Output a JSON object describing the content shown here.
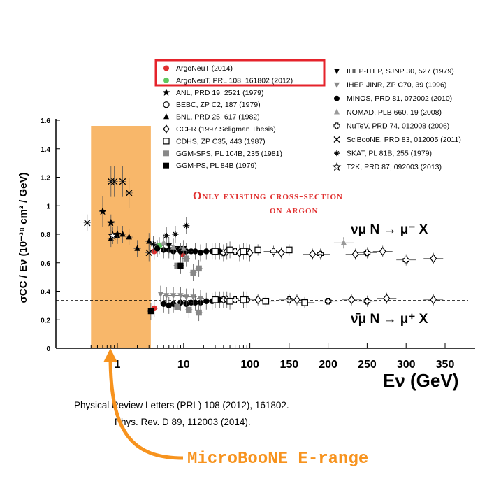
{
  "chart_data": {
    "type": "scatter",
    "title": "",
    "ylabel": "σCC / Eν (10⁻³⁸ cm² / GeV)",
    "xlabel": "Eν (GeV)",
    "ylim": [
      0,
      1.6
    ],
    "yticks": [
      "0",
      "0.2",
      "0.4",
      "0.6",
      "0.8",
      "1",
      "1.2",
      "1.4",
      "1.6"
    ],
    "xtick_labels": [
      "1",
      "10",
      "100",
      "150",
      "200",
      "250",
      "300",
      "350"
    ],
    "x_scale": "log below 100 GeV, linear above 100 GeV",
    "reference_lines": [
      {
        "y": 0.675,
        "style": "dashed",
        "label": "νμ N → μ⁻ X"
      },
      {
        "y": 0.335,
        "style": "dashed",
        "label": "ν̄μ N → μ⁺ X"
      }
    ],
    "highlight_band": {
      "x_range": [
        0.4,
        3.2
      ],
      "color": "#f8b76a",
      "label": "MicroBooNE E-range"
    },
    "annotation": "Only existing cross-section on argon",
    "legend": [
      {
        "label": "ArgoNeuT (2014)",
        "marker": "filled circle",
        "color": "#e03030",
        "boxed": true
      },
      {
        "label": "ArgoNeuT, PRL 108, 161802 (2012)",
        "marker": "filled circle",
        "color": "#5fc85f",
        "boxed": true
      },
      {
        "label": "ANL, PRD 19, 2521 (1979)",
        "marker": "filled star",
        "color": "#000000"
      },
      {
        "label": "BEBC, ZP C2, 187 (1979)",
        "marker": "open circle",
        "color": "#000000"
      },
      {
        "label": "BNL, PRD 25, 617 (1982)",
        "marker": "filled triangle",
        "color": "#000000"
      },
      {
        "label": "CCFR (1997 Seligman Thesis)",
        "marker": "open diamond",
        "color": "#000000"
      },
      {
        "label": "CDHS, ZP C35, 443 (1987)",
        "marker": "open square",
        "color": "#000000"
      },
      {
        "label": "GGM-SPS, PL 104B, 235 (1981)",
        "marker": "filled square",
        "color": "#888888"
      },
      {
        "label": "GGM-PS, PL 84B (1979)",
        "marker": "filled square",
        "color": "#000000"
      },
      {
        "label": "IHEP-ITEP, SJNP 30, 527 (1979)",
        "marker": "filled triangle down",
        "color": "#000000"
      },
      {
        "label": "IHEP-JINR, ZP C70, 39 (1996)",
        "marker": "filled triangle down",
        "color": "#888888"
      },
      {
        "label": "MINOS, PRD 81, 072002 (2010)",
        "marker": "filled circle",
        "color": "#000000"
      },
      {
        "label": "NOMAD, PLB 660, 19 (2008)",
        "marker": "filled triangle",
        "color": "#999999"
      },
      {
        "label": "NuTeV, PRD 74, 012008 (2006)",
        "marker": "open cross",
        "color": "#000000"
      },
      {
        "label": "SciBooNE, PRD 83, 012005 (2011)",
        "marker": "x",
        "color": "#000000"
      },
      {
        "label": "SKAT, PL 81B, 255 (1979)",
        "marker": "asterisk",
        "color": "#000000"
      },
      {
        "label": "T2K, PRD 87, 092003 (2013)",
        "marker": "open star",
        "color": "#000000"
      }
    ],
    "series": [
      {
        "name": "ArgoNeuT (2014)",
        "marker": "filled circle",
        "color": "#e03030",
        "points": [
          {
            "x": 3.6,
            "y": 0.68
          },
          {
            "x": 3.6,
            "y": 0.28
          },
          {
            "x": 9.6,
            "y": 0.66
          }
        ]
      },
      {
        "name": "ArgoNeuT, PRL 108, 161802 (2012)",
        "marker": "filled circle",
        "color": "#5fc85f",
        "points": [
          {
            "x": 4.3,
            "y": 0.72
          }
        ]
      },
      {
        "name": "MINOS, PRD 81, 072002 (2010)",
        "marker": "filled circle",
        "color": "#000000",
        "points": [
          {
            "x": 4,
            "y": 0.7
          },
          {
            "x": 5,
            "y": 0.69
          },
          {
            "x": 6,
            "y": 0.69
          },
          {
            "x": 7,
            "y": 0.68
          },
          {
            "x": 9,
            "y": 0.68
          },
          {
            "x": 11,
            "y": 0.68
          },
          {
            "x": 13,
            "y": 0.68
          },
          {
            "x": 15,
            "y": 0.68
          },
          {
            "x": 18,
            "y": 0.67
          },
          {
            "x": 22,
            "y": 0.68
          },
          {
            "x": 27,
            "y": 0.68
          },
          {
            "x": 35,
            "y": 0.68
          },
          {
            "x": 5,
            "y": 0.31
          },
          {
            "x": 6,
            "y": 0.3
          },
          {
            "x": 7,
            "y": 0.31
          },
          {
            "x": 9,
            "y": 0.32
          },
          {
            "x": 11,
            "y": 0.31
          },
          {
            "x": 13,
            "y": 0.32
          },
          {
            "x": 15,
            "y": 0.32
          },
          {
            "x": 18,
            "y": 0.32
          },
          {
            "x": 22,
            "y": 0.33
          },
          {
            "x": 27,
            "y": 0.33
          },
          {
            "x": 35,
            "y": 0.34
          }
        ]
      },
      {
        "name": "NuTeV, PRD 74, 012008 (2006)",
        "marker": "open cross",
        "color": "#000000",
        "points": [
          {
            "x": 40,
            "y": 0.67
          },
          {
            "x": 60,
            "y": 0.68
          },
          {
            "x": 90,
            "y": 0.68
          },
          {
            "x": 130,
            "y": 0.68
          },
          {
            "x": 190,
            "y": 0.66
          },
          {
            "x": 250,
            "y": 0.67
          },
          {
            "x": 300,
            "y": 0.62
          },
          {
            "x": 40,
            "y": 0.34
          },
          {
            "x": 60,
            "y": 0.34
          },
          {
            "x": 90,
            "y": 0.34
          },
          {
            "x": 150,
            "y": 0.34
          },
          {
            "x": 200,
            "y": 0.33
          },
          {
            "x": 250,
            "y": 0.33
          }
        ]
      },
      {
        "name": "CCFR (1997 Seligman Thesis)",
        "marker": "open diamond",
        "color": "#000000",
        "points": [
          {
            "x": 45,
            "y": 0.68
          },
          {
            "x": 70,
            "y": 0.67
          },
          {
            "x": 100,
            "y": 0.67
          },
          {
            "x": 140,
            "y": 0.67
          },
          {
            "x": 180,
            "y": 0.66
          },
          {
            "x": 235,
            "y": 0.66
          },
          {
            "x": 270,
            "y": 0.68
          },
          {
            "x": 335,
            "y": 0.63
          },
          {
            "x": 45,
            "y": 0.34
          },
          {
            "x": 80,
            "y": 0.34
          },
          {
            "x": 110,
            "y": 0.34
          },
          {
            "x": 160,
            "y": 0.34
          },
          {
            "x": 230,
            "y": 0.34
          },
          {
            "x": 275,
            "y": 0.35
          },
          {
            "x": 335,
            "y": 0.34
          }
        ]
      },
      {
        "name": "CDHS, ZP C35, 443 (1987)",
        "marker": "open square",
        "color": "#000000",
        "points": [
          {
            "x": 30,
            "y": 0.68
          },
          {
            "x": 50,
            "y": 0.69
          },
          {
            "x": 80,
            "y": 0.68
          },
          {
            "x": 110,
            "y": 0.69
          },
          {
            "x": 150,
            "y": 0.69
          },
          {
            "x": 30,
            "y": 0.34
          },
          {
            "x": 50,
            "y": 0.33
          },
          {
            "x": 80,
            "y": 0.34
          },
          {
            "x": 120,
            "y": 0.33
          },
          {
            "x": 170,
            "y": 0.32
          }
        ]
      },
      {
        "name": "GGM-SPS, PL 104B, 235 (1981)",
        "marker": "filled square",
        "color": "#888888",
        "points": [
          {
            "x": 8,
            "y": 0.58
          },
          {
            "x": 11,
            "y": 0.63
          },
          {
            "x": 14,
            "y": 0.53
          },
          {
            "x": 17,
            "y": 0.56
          },
          {
            "x": 8,
            "y": 0.29
          },
          {
            "x": 12,
            "y": 0.27
          },
          {
            "x": 17,
            "y": 0.25
          }
        ]
      },
      {
        "name": "GGM-PS, PL 84B (1979)",
        "marker": "filled square",
        "color": "#000000",
        "points": [
          {
            "x": 3.2,
            "y": 0.26
          },
          {
            "x": 9,
            "y": 0.58
          }
        ]
      },
      {
        "name": "IHEP-JINR, ZP C70, 39 (1996)",
        "marker": "filled triangle down",
        "color": "#888888",
        "points": [
          {
            "x": 4.5,
            "y": 0.38
          },
          {
            "x": 5.5,
            "y": 0.37
          },
          {
            "x": 7,
            "y": 0.37
          },
          {
            "x": 9,
            "y": 0.37
          },
          {
            "x": 11,
            "y": 0.36
          },
          {
            "x": 14,
            "y": 0.36
          },
          {
            "x": 18,
            "y": 0.35
          }
        ]
      },
      {
        "name": "IHEP-ITEP, SJNP 30, 527 (1979)",
        "marker": "filled triangle down",
        "color": "#000000",
        "points": [
          {
            "x": 6,
            "y": 0.72
          },
          {
            "x": 8,
            "y": 0.7
          },
          {
            "x": 10,
            "y": 0.7
          }
        ]
      },
      {
        "name": "NOMAD, PLB 660, 19 (2008)",
        "marker": "filled triangle",
        "color": "#999999",
        "points": [
          {
            "x": 5,
            "y": 0.74
          },
          {
            "x": 7,
            "y": 0.71
          },
          {
            "x": 10,
            "y": 0.7
          },
          {
            "x": 220,
            "y": 0.74
          }
        ]
      },
      {
        "name": "BNL, PRD 25, 617 (1982)",
        "marker": "filled triangle",
        "color": "#000000",
        "points": [
          {
            "x": 0.8,
            "y": 0.77
          },
          {
            "x": 1.0,
            "y": 0.79
          },
          {
            "x": 1.2,
            "y": 0.8
          },
          {
            "x": 1.5,
            "y": 0.78
          },
          {
            "x": 2.0,
            "y": 0.7
          },
          {
            "x": 3.0,
            "y": 0.75
          }
        ]
      },
      {
        "name": "ANL, PRD 19, 2521 (1979)",
        "marker": "filled star",
        "color": "#000000",
        "points": [
          {
            "x": 0.6,
            "y": 0.96
          },
          {
            "x": 0.8,
            "y": 0.88
          },
          {
            "x": 1.0,
            "y": 0.8
          }
        ]
      },
      {
        "name": "SKAT, PL 81B, 255 (1979)",
        "marker": "asterisk",
        "color": "#000000",
        "points": [
          {
            "x": 3.5,
            "y": 0.73
          },
          {
            "x": 5.5,
            "y": 0.79
          },
          {
            "x": 7.5,
            "y": 0.8
          },
          {
            "x": 11,
            "y": 0.86
          }
        ]
      },
      {
        "name": "SciBooNE, PRD 83, 012005 (2011)",
        "marker": "x",
        "color": "#000000",
        "points": [
          {
            "x": 0.35,
            "y": 0.88
          },
          {
            "x": 0.8,
            "y": 1.17
          },
          {
            "x": 0.9,
            "y": 1.17
          },
          {
            "x": 1.2,
            "y": 1.17
          },
          {
            "x": 1.5,
            "y": 1.09
          },
          {
            "x": 3.0,
            "y": 0.67
          }
        ]
      },
      {
        "name": "T2K, PRD 87, 092003 (2013)",
        "marker": "open star",
        "color": "#000000",
        "points": [
          {
            "x": 0.85,
            "y": 0.79
          }
        ]
      }
    ]
  },
  "labels": {
    "ylabel": "σCC / Eν (10⁻³⁸ cm² / GeV)",
    "xlabel": "Eν (GeV)",
    "annotation_line1": "Only existing cross-section",
    "annotation_line2": "on argon",
    "process_nu": "νμ N → μ⁻ X",
    "process_nubar": "ν̄μ N → μ⁺ X",
    "citation_1": "Physical Review Letters (PRL) 108 (2012), 161802.",
    "citation_2": "Phys. Rev. D 89, 112003 (2014).",
    "microboone": "MicroBooNE E-range"
  },
  "colors": {
    "band": "#f8b76a",
    "arrow": "#f7931e",
    "highlight_box": "#e5232b",
    "annotation": "#e0302f"
  }
}
